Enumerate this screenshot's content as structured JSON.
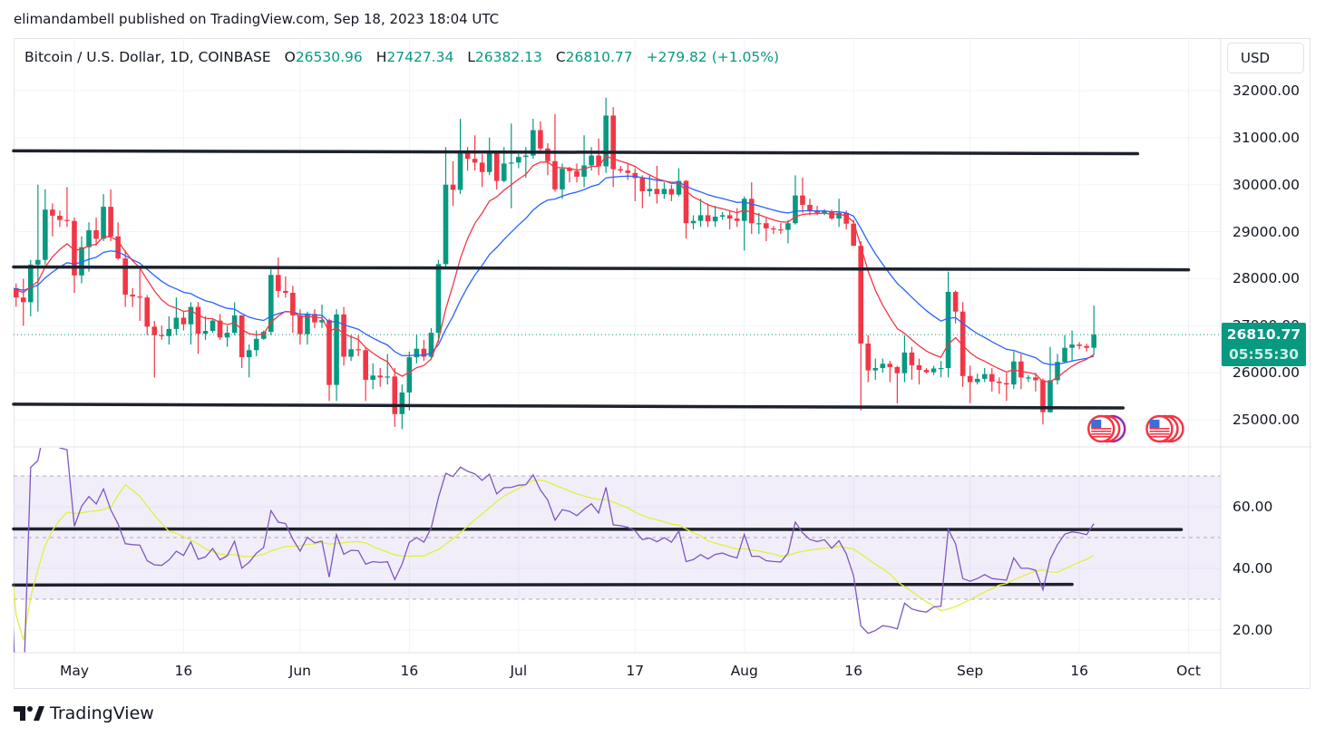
{
  "publisher_line": "elimandambell published on TradingView.com, Sep 18, 2023 18:04 UTC",
  "footer_brand": "TradingView",
  "currency": "USD",
  "legend": {
    "symbol": "Bitcoin / U.S. Dollar, 1D, COINBASE",
    "o_label": "O",
    "o": "26530.96",
    "h_label": "H",
    "h": "27427.34",
    "l_label": "L",
    "l": "26382.13",
    "c_label": "C",
    "c": "26810.77",
    "change": "+279.82 (+1.05%)"
  },
  "last_price": {
    "value": "26810.77",
    "countdown": "05:55:30"
  },
  "colors": {
    "up": "#089981",
    "down": "#F23645",
    "ma_fast": "#F23645",
    "ma_slow": "#2962FF",
    "rsi": "#7E57C2",
    "rsi_ma": "#E2F03C",
    "trendline": "#1E222D"
  },
  "chart_data": [
    {
      "type": "candlestick",
      "title": "Bitcoin / U.S. Dollar, 1D, COINBASE",
      "ylim": [
        24600,
        32300
      ],
      "y_ticks": [
        "32000.00",
        "31000.00",
        "30000.00",
        "29000.00",
        "28000.00",
        "27000.00",
        "26000.00",
        "25000.00"
      ],
      "y_tick_values": [
        32000,
        31000,
        30000,
        29000,
        28000,
        27000,
        26000,
        25000
      ],
      "x_ticks": [
        {
          "label": "May",
          "date": "05-01"
        },
        {
          "label": "16",
          "date": "05-16"
        },
        {
          "label": "Jun",
          "date": "06-01"
        },
        {
          "label": "16",
          "date": "06-16"
        },
        {
          "label": "Jul",
          "date": "07-01"
        },
        {
          "label": "17",
          "date": "07-17"
        },
        {
          "label": "Aug",
          "date": "08-01"
        },
        {
          "label": "16",
          "date": "08-16"
        },
        {
          "label": "Sep",
          "date": "09-01"
        },
        {
          "label": "16",
          "date": "09-16"
        },
        {
          "label": "Oct",
          "date": "10-01"
        }
      ],
      "grid": true,
      "overlays": [
        "moving average fast (red)",
        "moving average slow (blue)"
      ],
      "trendlines": [
        {
          "from": "04-22",
          "to": "09-24",
          "price_start": 30720,
          "price_end": 30660
        },
        {
          "from": "04-22",
          "to": "10-01",
          "price_start": 28250,
          "price_end": 28190
        },
        {
          "from": "04-22",
          "to": "09-22",
          "price_start": 25330,
          "price_end": 25250
        }
      ],
      "events": [
        {
          "date": "09-20",
          "icon": "us-flag-event-icon"
        },
        {
          "date": "09-28",
          "icon": "us-flag-event-icon"
        }
      ],
      "candles_fields": [
        "date",
        "open",
        "high",
        "low",
        "close"
      ],
      "candles": [
        [
          "04-22",
          27400,
          27900,
          27200,
          27800
        ],
        [
          "04-23",
          27800,
          27900,
          27400,
          27600
        ],
        [
          "04-24",
          27600,
          28000,
          27000,
          27500
        ],
        [
          "04-25",
          27500,
          28400,
          27200,
          28300
        ],
        [
          "04-26",
          28300,
          30000,
          27300,
          28400
        ],
        [
          "04-27",
          28400,
          29900,
          28300,
          29470
        ],
        [
          "04-28",
          29470,
          29600,
          28900,
          29340
        ],
        [
          "04-29",
          29340,
          29450,
          29100,
          29250
        ],
        [
          "04-30",
          29250,
          29950,
          29100,
          29230
        ],
        [
          "05-01",
          29230,
          29300,
          27700,
          28070
        ],
        [
          "05-02",
          28070,
          28900,
          27900,
          28670
        ],
        [
          "05-03",
          28670,
          29200,
          28150,
          29030
        ],
        [
          "05-04",
          29030,
          29300,
          28700,
          28850
        ],
        [
          "05-05",
          28850,
          29800,
          28800,
          29530
        ],
        [
          "05-06",
          29530,
          29900,
          28800,
          28900
        ],
        [
          "05-07",
          28900,
          29200,
          28400,
          28430
        ],
        [
          "05-08",
          28430,
          28600,
          27400,
          27660
        ],
        [
          "05-09",
          27660,
          27800,
          27400,
          27620
        ],
        [
          "05-10",
          27620,
          28200,
          27100,
          27600
        ],
        [
          "05-11",
          27600,
          27650,
          26800,
          26980
        ],
        [
          "05-12",
          26980,
          27100,
          25900,
          26800
        ],
        [
          "05-13",
          26800,
          27000,
          26700,
          26780
        ],
        [
          "05-14",
          26780,
          27200,
          26600,
          26930
        ],
        [
          "05-15",
          26930,
          27600,
          26800,
          27170
        ],
        [
          "05-16",
          27170,
          27300,
          26900,
          27030
        ],
        [
          "05-17",
          27030,
          27500,
          26600,
          27400
        ],
        [
          "05-18",
          27400,
          27500,
          26400,
          26830
        ],
        [
          "05-19",
          26830,
          27200,
          26700,
          26890
        ],
        [
          "05-20",
          26890,
          27150,
          26850,
          27110
        ],
        [
          "05-21",
          27110,
          27250,
          26700,
          26750
        ],
        [
          "05-22",
          26750,
          27000,
          26550,
          26850
        ],
        [
          "05-23",
          26850,
          27500,
          26800,
          27220
        ],
        [
          "05-24",
          27220,
          27220,
          26100,
          26330
        ],
        [
          "05-25",
          26330,
          26600,
          25900,
          26480
        ],
        [
          "05-26",
          26480,
          26900,
          26350,
          26720
        ],
        [
          "05-27",
          26720,
          26900,
          26700,
          26870
        ],
        [
          "05-28",
          26870,
          28200,
          26800,
          28080
        ],
        [
          "05-29",
          28080,
          28450,
          27600,
          27740
        ],
        [
          "05-30",
          27740,
          28050,
          27600,
          27700
        ],
        [
          "05-31",
          27700,
          27850,
          26850,
          27220
        ],
        [
          "06-01",
          27220,
          27350,
          26600,
          26820
        ],
        [
          "06-02",
          26820,
          27300,
          26600,
          27250
        ],
        [
          "06-03",
          27250,
          27350,
          26950,
          27070
        ],
        [
          "06-04",
          27070,
          27450,
          26950,
          27120
        ],
        [
          "06-05",
          27120,
          27150,
          25400,
          25740
        ],
        [
          "06-06",
          25740,
          27350,
          25400,
          27240
        ],
        [
          "06-07",
          27240,
          27400,
          26150,
          26340
        ],
        [
          "06-08",
          26340,
          26800,
          26250,
          26500
        ],
        [
          "06-09",
          26500,
          26800,
          26350,
          26480
        ],
        [
          "06-10",
          26480,
          26550,
          25400,
          25850
        ],
        [
          "06-11",
          25850,
          26200,
          25650,
          25940
        ],
        [
          "06-12",
          25940,
          26100,
          25700,
          25900
        ],
        [
          "06-13",
          25900,
          26400,
          25750,
          25920
        ],
        [
          "06-14",
          25920,
          26100,
          24850,
          25120
        ],
        [
          "06-15",
          25120,
          25750,
          24800,
          25580
        ],
        [
          "06-16",
          25580,
          26450,
          25200,
          26330
        ],
        [
          "06-17",
          26330,
          26800,
          26200,
          26510
        ],
        [
          "06-18",
          26510,
          26700,
          26250,
          26340
        ],
        [
          "06-19",
          26340,
          26950,
          26300,
          26850
        ],
        [
          "06-20",
          26850,
          28400,
          26650,
          28310
        ],
        [
          "06-21",
          28310,
          30800,
          28250,
          30000
        ],
        [
          "06-22",
          30000,
          30500,
          29550,
          29890
        ],
        [
          "06-23",
          29890,
          31400,
          29800,
          30690
        ],
        [
          "06-24",
          30690,
          30800,
          30300,
          30550
        ],
        [
          "06-25",
          30550,
          31050,
          30300,
          30470
        ],
        [
          "06-26",
          30470,
          30650,
          29950,
          30270
        ],
        [
          "06-27",
          30270,
          31000,
          30200,
          30690
        ],
        [
          "06-28",
          30690,
          30700,
          29900,
          30080
        ],
        [
          "06-29",
          30080,
          30800,
          30050,
          30450
        ],
        [
          "06-30",
          30450,
          31300,
          29500,
          30470
        ],
        [
          "07-01",
          30470,
          30650,
          30350,
          30590
        ],
        [
          "07-02",
          30590,
          30800,
          30150,
          30620
        ],
        [
          "07-03",
          30620,
          31400,
          30550,
          31160
        ],
        [
          "07-04",
          31160,
          31350,
          30650,
          30770
        ],
        [
          "07-05",
          30770,
          30880,
          30200,
          30500
        ],
        [
          "07-06",
          30500,
          31500,
          29850,
          29900
        ],
        [
          "07-07",
          29900,
          30450,
          29700,
          30340
        ],
        [
          "07-08",
          30340,
          30380,
          30050,
          30290
        ],
        [
          "07-09",
          30290,
          30450,
          30050,
          30170
        ],
        [
          "07-10",
          30170,
          31050,
          29950,
          30410
        ],
        [
          "07-11",
          30410,
          30800,
          30300,
          30620
        ],
        [
          "07-12",
          30620,
          30980,
          30200,
          30390
        ],
        [
          "07-13",
          30390,
          31850,
          30250,
          31470
        ],
        [
          "07-14",
          31470,
          31650,
          29950,
          30330
        ],
        [
          "07-15",
          30330,
          30400,
          30250,
          30300
        ],
        [
          "07-16",
          30300,
          30450,
          30100,
          30250
        ],
        [
          "07-17",
          30250,
          30350,
          29650,
          30140
        ],
        [
          "07-18",
          30140,
          30200,
          29500,
          29860
        ],
        [
          "07-19",
          29860,
          30200,
          29750,
          29910
        ],
        [
          "07-20",
          29910,
          30400,
          29600,
          29800
        ],
        [
          "07-21",
          29800,
          30050,
          29700,
          29910
        ],
        [
          "07-22",
          29910,
          30000,
          29650,
          29790
        ],
        [
          "07-23",
          29790,
          30350,
          29750,
          30080
        ],
        [
          "07-24",
          30080,
          30100,
          28850,
          29180
        ],
        [
          "07-25",
          29180,
          29350,
          29050,
          29230
        ],
        [
          "07-26",
          29230,
          29700,
          29100,
          29350
        ],
        [
          "07-27",
          29350,
          29600,
          29100,
          29220
        ],
        [
          "07-28",
          29220,
          29550,
          29100,
          29320
        ],
        [
          "07-29",
          29320,
          29420,
          29250,
          29350
        ],
        [
          "07-30",
          29350,
          29450,
          29050,
          29280
        ],
        [
          "07-31",
          29280,
          29500,
          29100,
          29230
        ],
        [
          "08-01",
          29230,
          29750,
          28600,
          29700
        ],
        [
          "08-02",
          29700,
          30050,
          28950,
          29180
        ],
        [
          "08-03",
          29180,
          29400,
          28950,
          29180
        ],
        [
          "08-04",
          29180,
          29300,
          28800,
          29070
        ],
        [
          "08-05",
          29070,
          29120,
          28950,
          29050
        ],
        [
          "08-06",
          29050,
          29180,
          28950,
          29040
        ],
        [
          "08-07",
          29040,
          29250,
          28750,
          29180
        ],
        [
          "08-08",
          29180,
          30200,
          29150,
          29770
        ],
        [
          "08-09",
          29770,
          30150,
          29400,
          29570
        ],
        [
          "08-10",
          29570,
          29700,
          29350,
          29440
        ],
        [
          "08-11",
          29440,
          29550,
          29350,
          29400
        ],
        [
          "08-12",
          29400,
          29480,
          29350,
          29430
        ],
        [
          "08-13",
          29430,
          29470,
          29250,
          29280
        ],
        [
          "08-14",
          29280,
          29700,
          29100,
          29400
        ],
        [
          "08-15",
          29400,
          29450,
          29050,
          29170
        ],
        [
          "08-16",
          29170,
          29250,
          28700,
          28700
        ],
        [
          "08-17",
          28700,
          28800,
          25200,
          26620
        ],
        [
          "08-18",
          26620,
          26800,
          25800,
          26050
        ],
        [
          "08-19",
          26050,
          26300,
          25850,
          26100
        ],
        [
          "08-20",
          26100,
          26300,
          26000,
          26190
        ],
        [
          "08-21",
          26190,
          26250,
          25800,
          26120
        ],
        [
          "08-22",
          26120,
          26150,
          25350,
          25990
        ],
        [
          "08-23",
          25990,
          26800,
          25800,
          26430
        ],
        [
          "08-24",
          26430,
          26550,
          25850,
          26160
        ],
        [
          "08-25",
          26160,
          26300,
          25750,
          26060
        ],
        [
          "08-26",
          26060,
          26100,
          25980,
          26010
        ],
        [
          "08-27",
          26010,
          26150,
          25950,
          26090
        ],
        [
          "08-28",
          26090,
          26250,
          25900,
          26100
        ],
        [
          "08-29",
          26100,
          28150,
          25900,
          27720
        ],
        [
          "08-30",
          27720,
          27750,
          27050,
          27300
        ],
        [
          "08-31",
          27300,
          27500,
          25700,
          25930
        ],
        [
          "09-01",
          25930,
          26150,
          25350,
          25800
        ],
        [
          "09-02",
          25800,
          25980,
          25750,
          25870
        ],
        [
          "09-03",
          25870,
          26100,
          25800,
          25970
        ],
        [
          "09-04",
          25970,
          26100,
          25600,
          25810
        ],
        [
          "09-05",
          25810,
          25900,
          25550,
          25780
        ],
        [
          "09-06",
          25780,
          26000,
          25400,
          25750
        ],
        [
          "09-07",
          25750,
          26450,
          25650,
          26240
        ],
        [
          "09-08",
          26240,
          26400,
          25650,
          25900
        ],
        [
          "09-09",
          25900,
          25950,
          25800,
          25900
        ],
        [
          "09-10",
          25900,
          26000,
          25600,
          25840
        ],
        [
          "09-11",
          25840,
          25880,
          24900,
          25160
        ],
        [
          "09-12",
          25160,
          26550,
          25150,
          25840
        ],
        [
          "09-13",
          25840,
          26400,
          25750,
          26230
        ],
        [
          "09-14",
          26230,
          26800,
          26200,
          26530
        ],
        [
          "09-15",
          26530,
          26900,
          26250,
          26600
        ],
        [
          "09-16",
          26600,
          26650,
          26500,
          26570
        ],
        [
          "09-17",
          26570,
          26620,
          26450,
          26530
        ],
        [
          "09-18",
          26530.96,
          27427.34,
          26382.13,
          26810.77
        ]
      ]
    },
    {
      "type": "line",
      "indicator": "RSI",
      "ylim": [
        15,
        75
      ],
      "y_ticks": [
        "60.00",
        "40.00",
        "20.00"
      ],
      "y_tick_values": [
        60,
        40,
        20
      ],
      "band": [
        30,
        70
      ],
      "midline": 50,
      "series": [
        {
          "role": "rsi",
          "color": "#7E57C2"
        },
        {
          "role": "rsi-ma",
          "color": "#E2F03C"
        }
      ],
      "trendlines": [
        {
          "from": "04-22",
          "to": "09-30",
          "value_start": 52.8,
          "value_end": 52.6
        },
        {
          "from": "04-22",
          "to": "09-15",
          "value_start": 34.6,
          "value_end": 34.8
        }
      ]
    }
  ]
}
